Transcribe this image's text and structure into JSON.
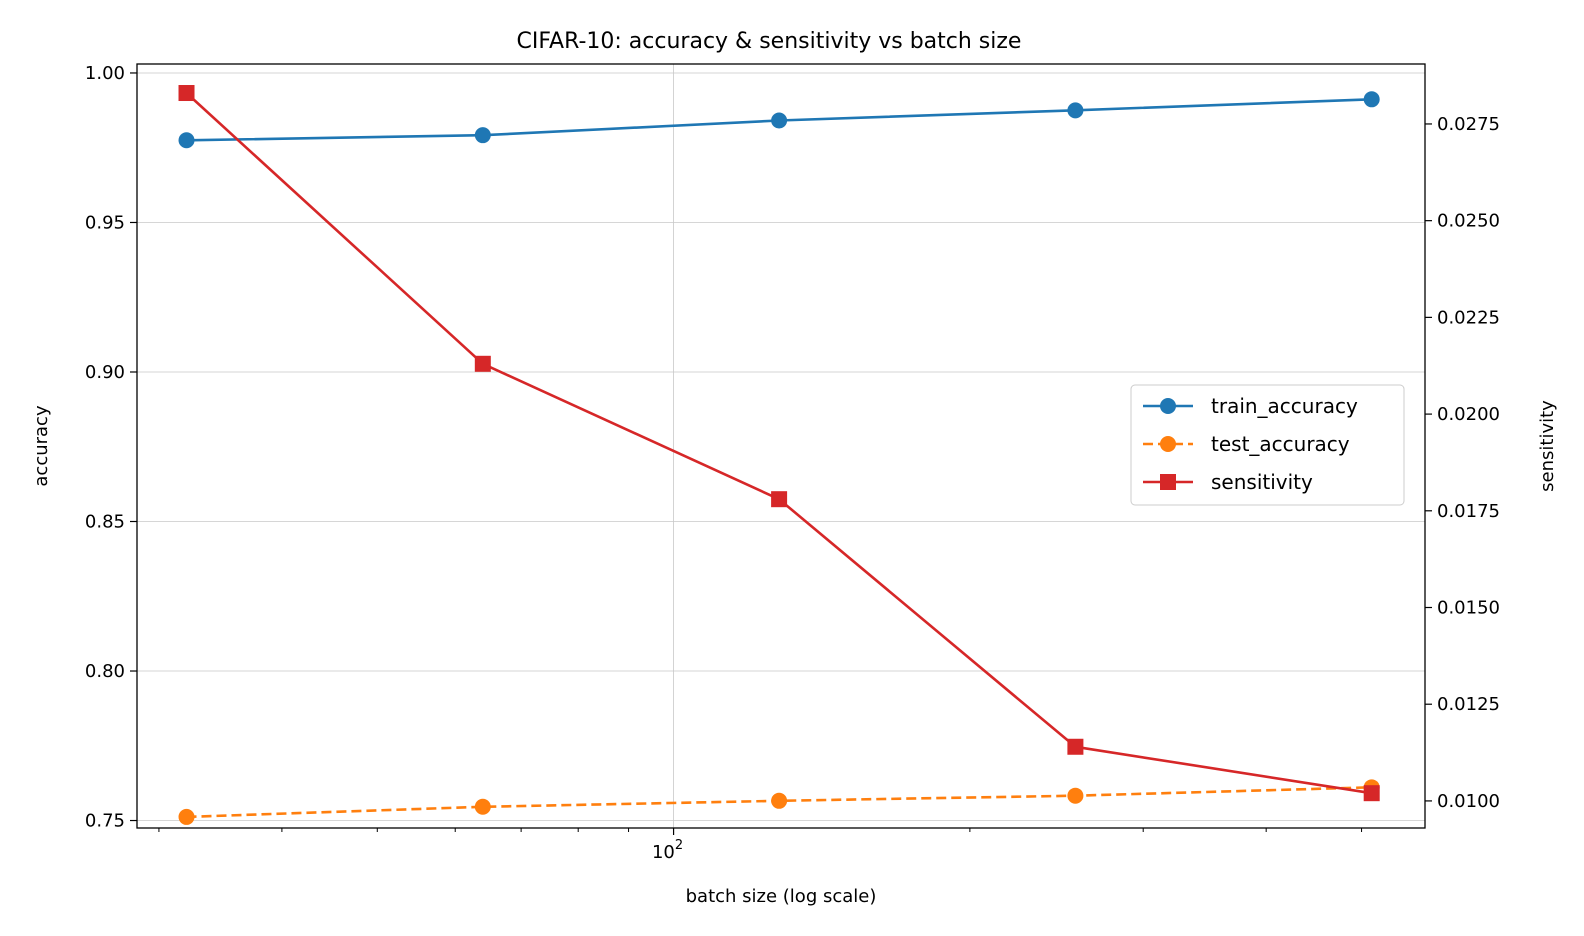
{
  "chart_data": {
    "type": "line",
    "title": "CIFAR-10: accuracy & sensitivity vs batch size",
    "xlabel": "batch size (log scale)",
    "x_scale": "log",
    "x": [
      32,
      64,
      128,
      256,
      512
    ],
    "xlim": [
      28.5,
      580
    ],
    "x_major_tick_label": {
      "base": "10",
      "exponent": "2",
      "value": 100
    },
    "y_left": {
      "label": "accuracy",
      "label_color": "#1f77b4",
      "ylim": [
        0.7475,
        1.003
      ],
      "ticks": [
        "0.75",
        "0.80",
        "0.85",
        "0.90",
        "0.95",
        "1.00"
      ]
    },
    "y_right": {
      "label": "sensitivity",
      "label_color": "#d62728",
      "ylim": [
        0.0093,
        0.02905
      ],
      "ticks": [
        "0.0100",
        "0.0125",
        "0.0150",
        "0.0175",
        "0.0200",
        "0.0225",
        "0.0250",
        "0.0275"
      ]
    },
    "grid": true,
    "legend_position": "center-right",
    "series": [
      {
        "name": "train_accuracy",
        "axis": "left",
        "color": "#1f77b4",
        "style": "solid",
        "marker": "circle",
        "values": [
          0.9775,
          0.9792,
          0.9841,
          0.9875,
          0.9912
        ]
      },
      {
        "name": "test_accuracy",
        "axis": "left",
        "color": "#ff7f0e",
        "style": "dashed",
        "marker": "circle",
        "values": [
          0.7512,
          0.7546,
          0.7566,
          0.7583,
          0.7611
        ]
      },
      {
        "name": "sensitivity",
        "axis": "right",
        "color": "#d62728",
        "style": "solid",
        "marker": "square",
        "values": [
          0.0283,
          0.0213,
          0.0178,
          0.0114,
          0.0102
        ]
      }
    ]
  }
}
